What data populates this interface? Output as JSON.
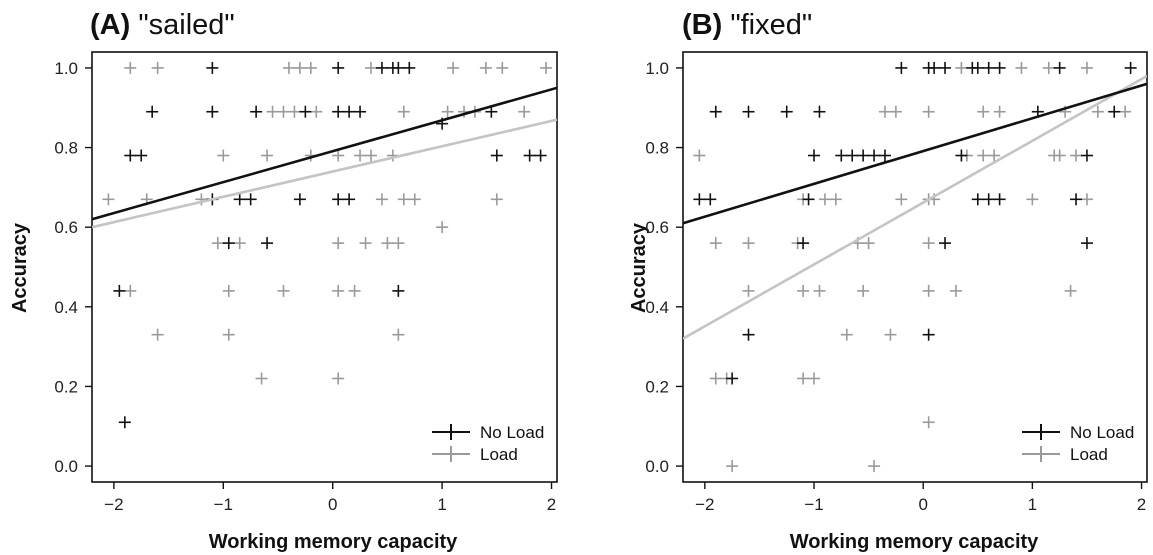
{
  "chart_data": [
    {
      "type": "scatter",
      "panel_label": "(A)",
      "title": "\"sailed\"",
      "xlabel": "Working memory capacity",
      "ylabel": "Accuracy",
      "xlim": [
        -2.2,
        2.05
      ],
      "ylim": [
        -0.04,
        1.04
      ],
      "xticks": [
        -2,
        -1,
        0,
        1,
        2
      ],
      "xtick_labels": [
        "−2",
        "−1",
        "0",
        "1",
        "2"
      ],
      "yticks": [
        0.0,
        0.2,
        0.4,
        0.6,
        0.8,
        1.0
      ],
      "ytick_labels": [
        "0.0",
        "0.2",
        "0.4",
        "0.6",
        "0.8",
        "1.0"
      ],
      "legend_position": "bottom-right",
      "grid": false,
      "series": [
        {
          "name": "No Load",
          "color": "#111111",
          "fit_line": [
            [
              -2.2,
              0.62
            ],
            [
              2.05,
              0.95
            ]
          ],
          "points": [
            [
              -1.9,
              0.11
            ],
            [
              -1.95,
              0.44
            ],
            [
              -1.85,
              0.78
            ],
            [
              -1.75,
              0.78
            ],
            [
              -1.65,
              0.89
            ],
            [
              -1.1,
              1.0
            ],
            [
              -1.1,
              0.89
            ],
            [
              -1.1,
              0.67
            ],
            [
              -0.95,
              0.56
            ],
            [
              -0.85,
              0.67
            ],
            [
              -0.75,
              0.67
            ],
            [
              -0.7,
              0.89
            ],
            [
              -0.6,
              0.56
            ],
            [
              -0.3,
              0.67
            ],
            [
              -0.25,
              0.89
            ],
            [
              0.05,
              1.0
            ],
            [
              0.05,
              0.89
            ],
            [
              0.05,
              0.67
            ],
            [
              0.15,
              0.67
            ],
            [
              0.15,
              0.89
            ],
            [
              0.25,
              0.89
            ],
            [
              0.45,
              1.0
            ],
            [
              0.55,
              1.0
            ],
            [
              0.6,
              1.0
            ],
            [
              0.7,
              1.0
            ],
            [
              0.6,
              0.44
            ],
            [
              1.0,
              0.86
            ],
            [
              1.45,
              0.89
            ],
            [
              1.5,
              0.78
            ],
            [
              1.8,
              0.78
            ],
            [
              1.9,
              0.78
            ]
          ]
        },
        {
          "name": "Load",
          "color": "#9a9a9a",
          "fit_line": [
            [
              -2.2,
              0.6
            ],
            [
              2.05,
              0.87
            ]
          ],
          "points": [
            [
              -2.05,
              0.67
            ],
            [
              -1.85,
              1.0
            ],
            [
              -1.85,
              0.44
            ],
            [
              -1.7,
              0.67
            ],
            [
              -1.6,
              1.0
            ],
            [
              -1.6,
              0.33
            ],
            [
              -1.2,
              0.67
            ],
            [
              -1.05,
              0.56
            ],
            [
              -1.0,
              0.78
            ],
            [
              -0.95,
              0.44
            ],
            [
              -0.95,
              0.33
            ],
            [
              -0.85,
              0.56
            ],
            [
              -0.65,
              0.22
            ],
            [
              -0.6,
              0.78
            ],
            [
              -0.55,
              0.89
            ],
            [
              -0.45,
              0.89
            ],
            [
              -0.45,
              0.44
            ],
            [
              -0.4,
              1.0
            ],
            [
              -0.35,
              0.89
            ],
            [
              -0.3,
              1.0
            ],
            [
              -0.2,
              1.0
            ],
            [
              -0.2,
              0.78
            ],
            [
              -0.15,
              0.89
            ],
            [
              0.05,
              0.78
            ],
            [
              0.05,
              0.56
            ],
            [
              0.05,
              0.44
            ],
            [
              0.05,
              0.22
            ],
            [
              0.2,
              0.44
            ],
            [
              0.25,
              0.78
            ],
            [
              0.3,
              0.56
            ],
            [
              0.35,
              0.78
            ],
            [
              0.35,
              1.0
            ],
            [
              0.45,
              0.67
            ],
            [
              0.5,
              0.56
            ],
            [
              0.55,
              0.78
            ],
            [
              0.6,
              0.56
            ],
            [
              0.6,
              0.33
            ],
            [
              0.65,
              0.67
            ],
            [
              0.65,
              0.89
            ],
            [
              0.75,
              0.67
            ],
            [
              1.0,
              0.6
            ],
            [
              1.05,
              0.89
            ],
            [
              1.1,
              1.0
            ],
            [
              1.2,
              0.89
            ],
            [
              1.3,
              0.89
            ],
            [
              1.4,
              1.0
            ],
            [
              1.5,
              0.67
            ],
            [
              1.55,
              1.0
            ],
            [
              1.75,
              0.89
            ],
            [
              1.95,
              1.0
            ]
          ]
        }
      ]
    },
    {
      "type": "scatter",
      "panel_label": "(B)",
      "title": "\"fixed\"",
      "xlabel": "Working memory capacity",
      "ylabel": "Accuracy",
      "xlim": [
        -2.2,
        2.05
      ],
      "ylim": [
        -0.04,
        1.04
      ],
      "xticks": [
        -2,
        -1,
        0,
        1,
        2
      ],
      "xtick_labels": [
        "−2",
        "−1",
        "0",
        "1",
        "2"
      ],
      "yticks": [
        0.0,
        0.2,
        0.4,
        0.6,
        0.8,
        1.0
      ],
      "ytick_labels": [
        "0.0",
        "0.2",
        "0.4",
        "0.6",
        "0.8",
        "1.0"
      ],
      "legend_position": "bottom-right",
      "grid": false,
      "series": [
        {
          "name": "No Load",
          "color": "#111111",
          "fit_line": [
            [
              -2.2,
              0.61
            ],
            [
              2.05,
              0.96
            ]
          ],
          "points": [
            [
              -2.05,
              0.67
            ],
            [
              -1.95,
              0.67
            ],
            [
              -1.9,
              0.89
            ],
            [
              -1.75,
              0.22
            ],
            [
              -1.6,
              0.89
            ],
            [
              -1.6,
              0.33
            ],
            [
              -1.25,
              0.89
            ],
            [
              -1.1,
              0.56
            ],
            [
              -1.05,
              0.67
            ],
            [
              -0.95,
              0.89
            ],
            [
              -1.0,
              0.78
            ],
            [
              -0.75,
              0.78
            ],
            [
              -0.65,
              0.78
            ],
            [
              -0.55,
              0.78
            ],
            [
              -0.45,
              0.78
            ],
            [
              -0.35,
              0.78
            ],
            [
              -0.2,
              1.0
            ],
            [
              0.05,
              1.0
            ],
            [
              0.1,
              1.0
            ],
            [
              0.2,
              1.0
            ],
            [
              0.05,
              0.33
            ],
            [
              0.2,
              0.56
            ],
            [
              0.35,
              0.78
            ],
            [
              0.45,
              1.0
            ],
            [
              0.5,
              1.0
            ],
            [
              0.6,
              1.0
            ],
            [
              0.5,
              0.67
            ],
            [
              0.6,
              0.67
            ],
            [
              0.7,
              0.67
            ],
            [
              0.7,
              1.0
            ],
            [
              1.05,
              0.89
            ],
            [
              1.25,
              1.0
            ],
            [
              1.4,
              0.67
            ],
            [
              1.5,
              0.78
            ],
            [
              1.5,
              0.56
            ],
            [
              1.75,
              0.89
            ],
            [
              1.9,
              1.0
            ]
          ]
        },
        {
          "name": "Load",
          "color": "#9a9a9a",
          "fit_line": [
            [
              -2.2,
              0.32
            ],
            [
              2.05,
              0.98
            ]
          ],
          "points": [
            [
              -2.05,
              0.78
            ],
            [
              -1.9,
              0.56
            ],
            [
              -1.9,
              0.22
            ],
            [
              -1.8,
              0.22
            ],
            [
              -1.75,
              0.0
            ],
            [
              -1.6,
              0.56
            ],
            [
              -1.6,
              0.44
            ],
            [
              -1.15,
              0.56
            ],
            [
              -1.1,
              0.67
            ],
            [
              -1.1,
              0.44
            ],
            [
              -1.1,
              0.22
            ],
            [
              -1.0,
              0.22
            ],
            [
              -0.95,
              0.44
            ],
            [
              -0.9,
              0.67
            ],
            [
              -0.8,
              0.67
            ],
            [
              -0.7,
              0.33
            ],
            [
              -0.6,
              0.56
            ],
            [
              -0.55,
              0.44
            ],
            [
              -0.5,
              0.56
            ],
            [
              -0.45,
              0.0
            ],
            [
              -0.35,
              0.89
            ],
            [
              -0.3,
              0.33
            ],
            [
              -0.25,
              0.89
            ],
            [
              -0.2,
              0.67
            ],
            [
              0.05,
              0.89
            ],
            [
              0.05,
              0.67
            ],
            [
              0.05,
              0.56
            ],
            [
              0.05,
              0.44
            ],
            [
              0.05,
              0.11
            ],
            [
              0.1,
              0.67
            ],
            [
              0.3,
              0.44
            ],
            [
              0.35,
              1.0
            ],
            [
              0.4,
              0.78
            ],
            [
              0.55,
              0.89
            ],
            [
              0.55,
              0.78
            ],
            [
              0.65,
              0.78
            ],
            [
              0.7,
              0.89
            ],
            [
              0.9,
              1.0
            ],
            [
              1.0,
              0.67
            ],
            [
              1.15,
              1.0
            ],
            [
              1.2,
              0.78
            ],
            [
              1.25,
              0.78
            ],
            [
              1.3,
              0.89
            ],
            [
              1.4,
              0.78
            ],
            [
              1.35,
              0.44
            ],
            [
              1.5,
              1.0
            ],
            [
              1.5,
              0.67
            ],
            [
              1.6,
              0.89
            ],
            [
              1.85,
              0.89
            ]
          ]
        }
      ]
    }
  ]
}
